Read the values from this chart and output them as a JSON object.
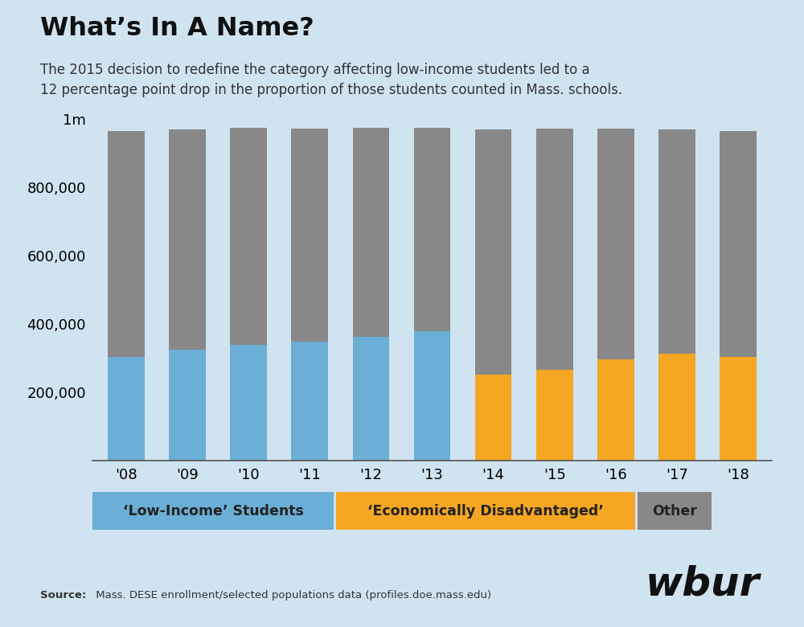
{
  "title": "What’s In A Name?",
  "subtitle_line1": "The 2015 decision to redefine the category affecting low-income students led to a",
  "subtitle_line2": "12 percentage point drop in the proportion of those students counted in Mass. schools.",
  "years": [
    "'08",
    "'09",
    "'10",
    "'11",
    "'12",
    "'13",
    "'14",
    "'15",
    "'16",
    "'17",
    "'18"
  ],
  "low_income": [
    305000,
    325000,
    340000,
    350000,
    362000,
    380000,
    0,
    0,
    0,
    0,
    0
  ],
  "econ_disadv": [
    0,
    0,
    0,
    0,
    0,
    0,
    252000,
    267000,
    297000,
    313000,
    305000
  ],
  "other": [
    660000,
    645000,
    635000,
    622000,
    612000,
    595000,
    718000,
    705000,
    675000,
    658000,
    660000
  ],
  "color_low_income": "#6baed6",
  "color_econ_disadv": "#f5a623",
  "color_other": "#888888",
  "background_color": "#d0e3f0",
  "ylim": [
    0,
    1000000
  ],
  "yticks": [
    0,
    200000,
    400000,
    600000,
    800000,
    1000000
  ],
  "source_bold": "Source:",
  "source_rest": " Mass. DESE enrollment/selected populations data (profiles.doe.mass.edu)",
  "wbur_text": "wbur",
  "legend_low_income": "‘Low-Income’ Students",
  "legend_econ_disadv": "‘Economically Disadvantaged’",
  "legend_other": "Other"
}
